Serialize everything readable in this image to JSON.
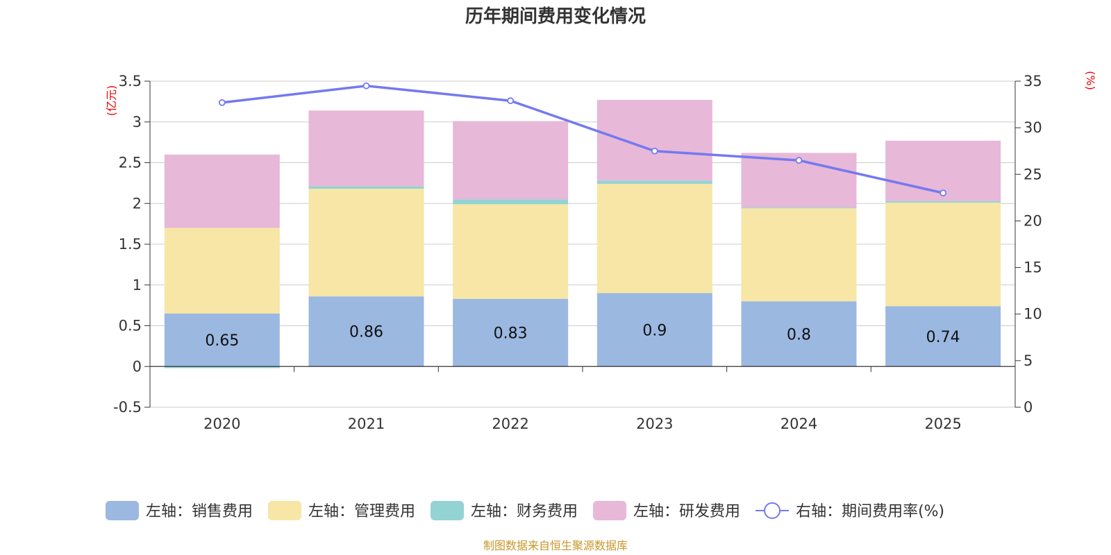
{
  "colors": {
    "sales": "#9bb8e1",
    "admin": "#f7e6a6",
    "finance": "#94d3d3",
    "rd": "#e7b8d8",
    "rate": "#7479ef",
    "grid": "#cccccc",
    "axis": "#333333",
    "unit": "#ee0000",
    "source": "#c8962a"
  },
  "chart_data": {
    "type": "bar",
    "title": "历年期间费用变化情况",
    "categories": [
      "2020",
      "2021",
      "2022",
      "2023",
      "2024",
      "2025"
    ],
    "left_axis": {
      "unit": "(亿元)",
      "ylim": [
        -0.5,
        3.5
      ],
      "ticks": [
        "-0.5",
        "0",
        "0.5",
        "1",
        "1.5",
        "2",
        "2.5",
        "3",
        "3.5"
      ],
      "tick_values": [
        -0.5,
        0,
        0.5,
        1,
        1.5,
        2,
        2.5,
        3,
        3.5
      ]
    },
    "right_axis": {
      "unit": "(%)",
      "ylim": [
        0,
        35
      ],
      "ticks": [
        "0",
        "5",
        "10",
        "15",
        "20",
        "25",
        "30",
        "35"
      ],
      "tick_values": [
        0,
        5,
        10,
        15,
        20,
        25,
        30,
        35
      ]
    },
    "series": [
      {
        "key": "sales",
        "name": "左轴：销售费用",
        "kind": "bar",
        "axis": "left",
        "values": [
          0.65,
          0.86,
          0.83,
          0.9,
          0.8,
          0.74
        ],
        "labels": [
          "0.65",
          "0.86",
          "0.83",
          "0.9",
          "0.8",
          "0.74"
        ]
      },
      {
        "key": "admin",
        "name": "左轴：管理费用",
        "kind": "bar",
        "axis": "left",
        "values": [
          1.05,
          1.32,
          1.16,
          1.34,
          1.14,
          1.27
        ]
      },
      {
        "key": "finance",
        "name": "左轴：财务费用",
        "kind": "bar",
        "axis": "left",
        "values": [
          -0.02,
          0.03,
          0.06,
          0.04,
          0.01,
          0.02
        ]
      },
      {
        "key": "rd",
        "name": "左轴：研发费用",
        "kind": "bar",
        "axis": "left",
        "values": [
          0.9,
          0.93,
          0.96,
          0.99,
          0.67,
          0.74
        ]
      },
      {
        "key": "rate",
        "name": "右轴：期间费用率(%)",
        "kind": "line",
        "axis": "right",
        "values": [
          32.7,
          34.5,
          32.9,
          27.5,
          26.5,
          23.0
        ]
      }
    ]
  },
  "footer": {
    "source": "制图数据来自恒生聚源数据库"
  }
}
